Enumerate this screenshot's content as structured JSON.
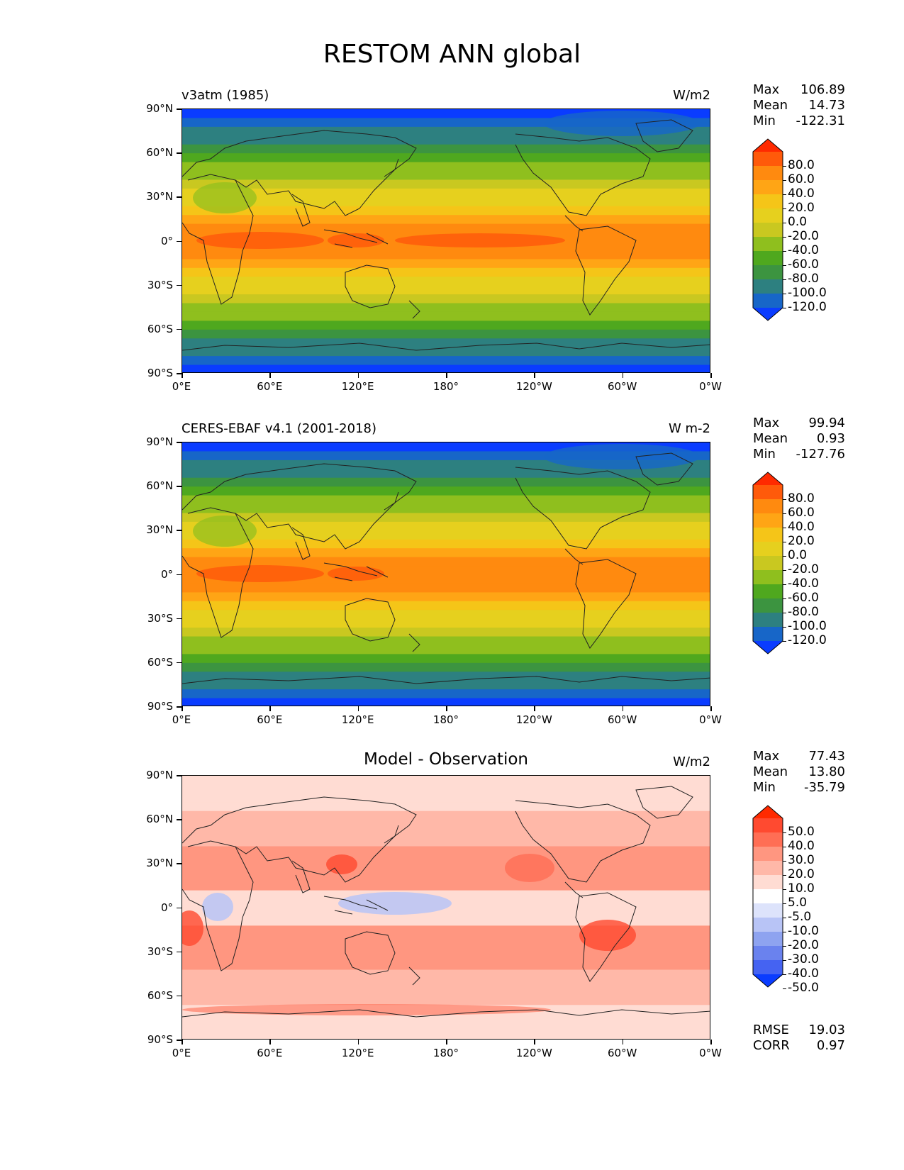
{
  "figure_title": "RESTOM ANN global",
  "lat_ticks": [
    "90°N",
    "60°N",
    "30°N",
    "0°",
    "30°S",
    "60°S",
    "90°S"
  ],
  "lon_ticks": [
    "0°E",
    "60°E",
    "120°E",
    "180°",
    "120°W",
    "60°W",
    "0°W"
  ],
  "panels": [
    {
      "left_title": "v3atm (1985)",
      "center_title": "",
      "units": "W/m2",
      "stats": {
        "max_label": "Max",
        "max": "106.89",
        "mean_label": "Mean",
        "mean": "14.73",
        "min_label": "Min",
        "min": "-122.31"
      },
      "colorbar": {
        "labels": [
          "80.0",
          "60.0",
          "40.0",
          "20.0",
          "0.0",
          "-20.0",
          "-40.0",
          "-60.0",
          "-80.0",
          "-100.0",
          "-120.0"
        ],
        "colors": [
          "#ff2a00",
          "#ff5a0a",
          "#ff8a0f",
          "#ffa515",
          "#f5c518",
          "#e6d01e",
          "#c9c820",
          "#8fbf1e",
          "#4fa81e",
          "#3c9440",
          "#2d8080",
          "#1766c8",
          "#0a3cff"
        ]
      }
    },
    {
      "left_title": "CERES-EBAF v4.1 (2001-2018)",
      "center_title": "",
      "units": "W m-2",
      "stats": {
        "max_label": "Max",
        "max": "99.94",
        "mean_label": "Mean",
        "mean": "0.93",
        "min_label": "Min",
        "min": "-127.76"
      },
      "colorbar": {
        "labels": [
          "80.0",
          "60.0",
          "40.0",
          "20.0",
          "0.0",
          "-20.0",
          "-40.0",
          "-60.0",
          "-80.0",
          "-100.0",
          "-120.0"
        ],
        "colors": [
          "#ff2a00",
          "#ff5a0a",
          "#ff8a0f",
          "#ffa515",
          "#f5c518",
          "#e6d01e",
          "#c9c820",
          "#8fbf1e",
          "#4fa81e",
          "#3c9440",
          "#2d8080",
          "#1766c8",
          "#0a3cff"
        ]
      }
    },
    {
      "left_title": "",
      "center_title": "Model - Observation",
      "units": "W/m2",
      "stats": {
        "max_label": "Max",
        "max": "77.43",
        "mean_label": "Mean",
        "mean": "13.80",
        "min_label": "Min",
        "min": "-35.79",
        "rmse_label": "RMSE",
        "rmse": "19.03",
        "corr_label": "CORR",
        "corr": "0.97"
      },
      "colorbar": {
        "labels": [
          "50.0",
          "40.0",
          "30.0",
          "20.0",
          "10.0",
          "5.0",
          "-5.0",
          "-10.0",
          "-20.0",
          "-30.0",
          "-40.0",
          "-50.0"
        ],
        "colors": [
          "#ff2a00",
          "#ff4a30",
          "#ff6e55",
          "#ff9680",
          "#ffb8a8",
          "#ffdcd3",
          "#ffffff",
          "#dde3fb",
          "#b8c4f6",
          "#8ea3f0",
          "#6a82ee",
          "#4563f2",
          "#0a3cff"
        ]
      }
    }
  ]
}
